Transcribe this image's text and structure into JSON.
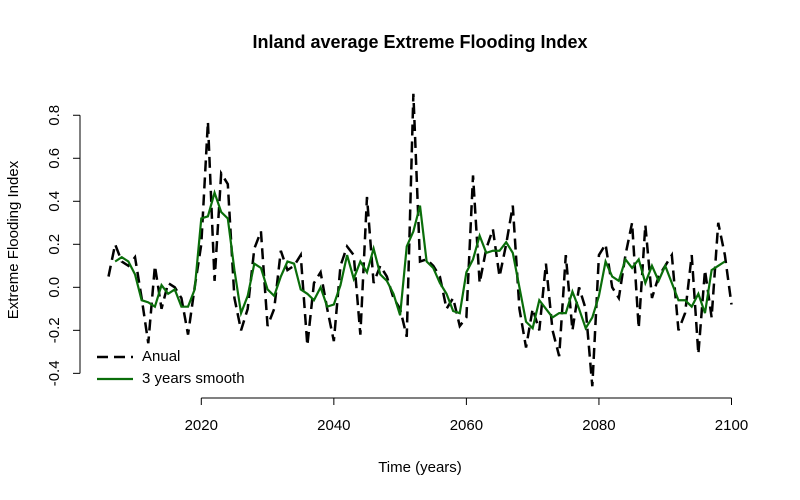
{
  "chart_data": {
    "type": "line",
    "title": "Inland average Extreme Flooding Index",
    "x_label": "Time (years)",
    "y_label": "Extreme Flooding Index",
    "x": [
      2006,
      2007,
      2008,
      2009,
      2010,
      2011,
      2012,
      2013,
      2014,
      2015,
      2016,
      2017,
      2018,
      2019,
      2020,
      2021,
      2022,
      2023,
      2024,
      2025,
      2026,
      2027,
      2028,
      2029,
      2030,
      2031,
      2032,
      2033,
      2034,
      2035,
      2036,
      2037,
      2038,
      2039,
      2040,
      2041,
      2042,
      2043,
      2044,
      2045,
      2046,
      2047,
      2048,
      2049,
      2050,
      2051,
      2052,
      2053,
      2054,
      2055,
      2056,
      2057,
      2058,
      2059,
      2060,
      2061,
      2062,
      2063,
      2064,
      2065,
      2066,
      2067,
      2068,
      2069,
      2070,
      2071,
      2072,
      2073,
      2074,
      2075,
      2076,
      2077,
      2078,
      2079,
      2080,
      2081,
      2082,
      2083,
      2084,
      2085,
      2086,
      2087,
      2088,
      2089,
      2090,
      2091,
      2092,
      2093,
      2094,
      2095,
      2096,
      2097,
      2098,
      2099,
      2100
    ],
    "series": [
      {
        "name": "Anual",
        "color": "#000000",
        "dashed": true,
        "values": [
          0.05,
          0.2,
          0.12,
          0.1,
          0.14,
          -0.05,
          -0.26,
          0.1,
          -0.1,
          0.02,
          0.0,
          -0.05,
          -0.22,
          0.0,
          0.2,
          0.77,
          0.03,
          0.53,
          0.48,
          -0.05,
          -0.2,
          -0.1,
          0.18,
          0.26,
          -0.18,
          -0.1,
          0.17,
          0.08,
          0.1,
          0.15,
          -0.27,
          0.02,
          0.07,
          -0.1,
          -0.25,
          0.1,
          0.19,
          0.15,
          -0.22,
          0.42,
          0.02,
          0.1,
          0.05,
          -0.05,
          -0.1,
          -0.23,
          0.9,
          0.12,
          0.13,
          0.1,
          0.05,
          -0.1,
          -0.05,
          -0.18,
          -0.14,
          0.52,
          0.02,
          0.18,
          0.27,
          0.05,
          0.2,
          0.38,
          -0.1,
          -0.28,
          -0.1,
          -0.2,
          0.11,
          -0.2,
          -0.32,
          0.15,
          -0.2,
          0.0,
          -0.1,
          -0.46,
          0.15,
          0.2,
          0.0,
          -0.05,
          0.15,
          0.3,
          -0.19,
          0.29,
          -0.05,
          0.05,
          0.1,
          0.15,
          -0.2,
          -0.12,
          0.15,
          -0.31,
          0.08,
          -0.14,
          0.3,
          0.15,
          -0.08
        ]
      },
      {
        "name": "3 years smooth",
        "color": "#0a6e0a",
        "dashed": false,
        "values": [
          null,
          0.12,
          0.14,
          0.12,
          0.06,
          -0.06,
          -0.07,
          -0.09,
          0.01,
          -0.03,
          -0.01,
          -0.09,
          -0.09,
          -0.01,
          0.32,
          0.33,
          0.44,
          0.35,
          0.32,
          0.08,
          -0.12,
          -0.04,
          0.11,
          0.09,
          -0.01,
          -0.04,
          0.05,
          0.12,
          0.11,
          -0.01,
          -0.03,
          -0.06,
          0.0,
          -0.09,
          -0.08,
          0.01,
          0.15,
          0.04,
          0.12,
          0.07,
          0.18,
          0.06,
          0.03,
          -0.03,
          -0.13,
          0.19,
          0.26,
          0.38,
          0.12,
          0.09,
          0.02,
          -0.03,
          -0.11,
          -0.12,
          0.07,
          0.13,
          0.24,
          0.16,
          0.17,
          0.17,
          0.21,
          0.16,
          0.0,
          -0.16,
          -0.19,
          -0.06,
          -0.1,
          -0.14,
          -0.12,
          -0.12,
          -0.02,
          -0.1,
          -0.19,
          -0.14,
          -0.04,
          0.12,
          0.05,
          0.03,
          0.13,
          0.09,
          0.13,
          0.02,
          0.1,
          0.03,
          0.1,
          0.02,
          -0.06,
          -0.06,
          -0.09,
          -0.03,
          -0.12,
          0.08,
          0.1,
          0.12,
          null
        ]
      }
    ],
    "xlim": [
      2002,
      2104
    ],
    "ylim": [
      -0.51,
      0.95
    ],
    "xticks": [
      2020,
      2040,
      2060,
      2080,
      2100
    ],
    "yticks": [
      -0.4,
      -0.2,
      {
        "value": 0,
        "label": "0.0"
      },
      0.2,
      0.4,
      0.6,
      0.8
    ],
    "legend": "bottomleft"
  }
}
